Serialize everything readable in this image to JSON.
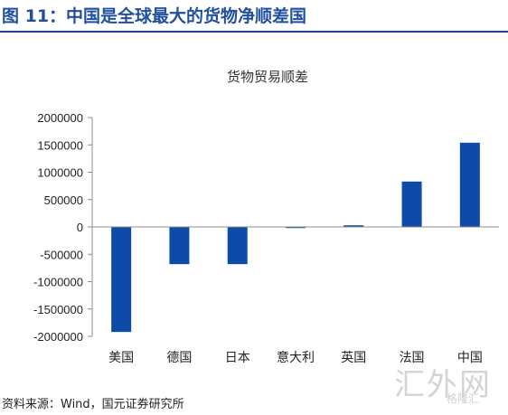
{
  "figure": {
    "title": "图 11：中国是全球最大的货物净顺差国",
    "source": "资料来源：Wind，国元证券研究所",
    "watermark": "汇外网",
    "watermark_sub": "格隆汇"
  },
  "chart_data": {
    "type": "bar",
    "title": "货物贸易顺差",
    "categories": [
      "美国",
      "德国",
      "日本",
      "意大利",
      "英国",
      "法国",
      "中国"
    ],
    "values": [
      -1920000,
      -680000,
      -680000,
      -20000,
      30000,
      830000,
      1540000
    ],
    "ylim": [
      -2000000,
      2000000
    ],
    "yticks": [
      "2000000",
      "1500000",
      "1000000",
      "500000",
      "0",
      "-500000",
      "-1000000",
      "-1500000",
      "-2000000"
    ],
    "xlabel": "",
    "ylabel": "",
    "grid": false,
    "colors": {
      "bar": "#0e4aa8",
      "axis": "#8c8c8c"
    }
  }
}
